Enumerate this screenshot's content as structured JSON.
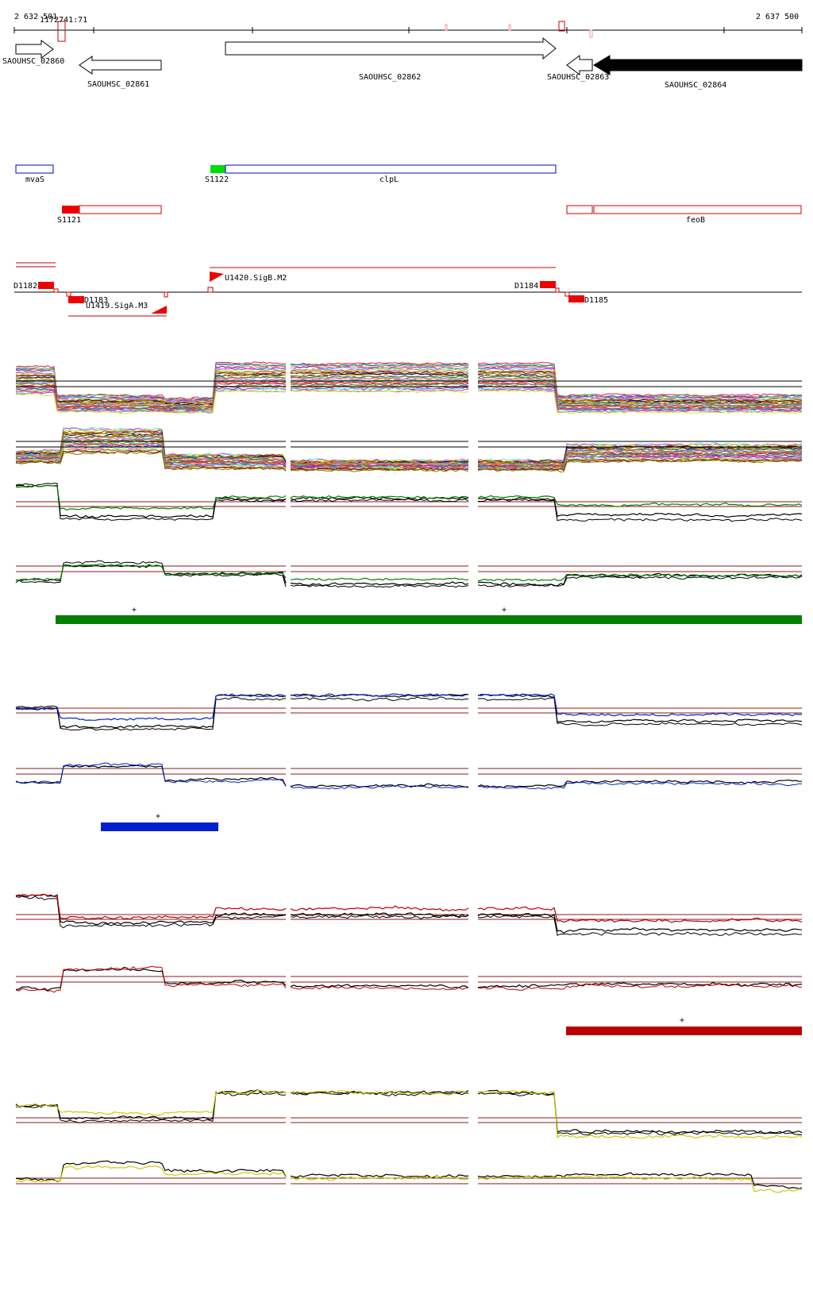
{
  "axis": {
    "start_label": "2 632 501",
    "end_label": "2 637 500"
  },
  "ruler_marker_label": "1172741:71",
  "genes": [
    {
      "name": "SAOUHSC_02860",
      "strand": "+",
      "filled": false
    },
    {
      "name": "SAOUHSC_02861",
      "strand": "-",
      "filled": false
    },
    {
      "name": "SAOUHSC_02862",
      "strand": "+",
      "filled": false
    },
    {
      "name": "SAOUHSC_02863",
      "strand": "-",
      "filled": false
    },
    {
      "name": "SAOUHSC_02864",
      "strand": "-",
      "filled": true
    }
  ],
  "features": {
    "mvaS": "mvaS",
    "s1122": "S1122",
    "clpL": "clpL",
    "s1121": "S1121",
    "feoB": "feoB"
  },
  "promoters": {
    "d1182": "D1182",
    "d1183": "D1183",
    "u1419": "U1419.SigA.M3",
    "u1420": "U1420.SigB.M2",
    "d1184": "D1184",
    "d1185": "D1185"
  },
  "marks": {
    "plus": "+"
  },
  "colors": {
    "green": "#008000",
    "blue": "#0022cc",
    "red": "#bb0000",
    "yellow": "#cccc00",
    "threshold": "#8b1a1a",
    "feature_outline_blue": "#0000cc",
    "feature_outline_red": "#cc0000",
    "sigma_green": "#00dd00"
  }
}
